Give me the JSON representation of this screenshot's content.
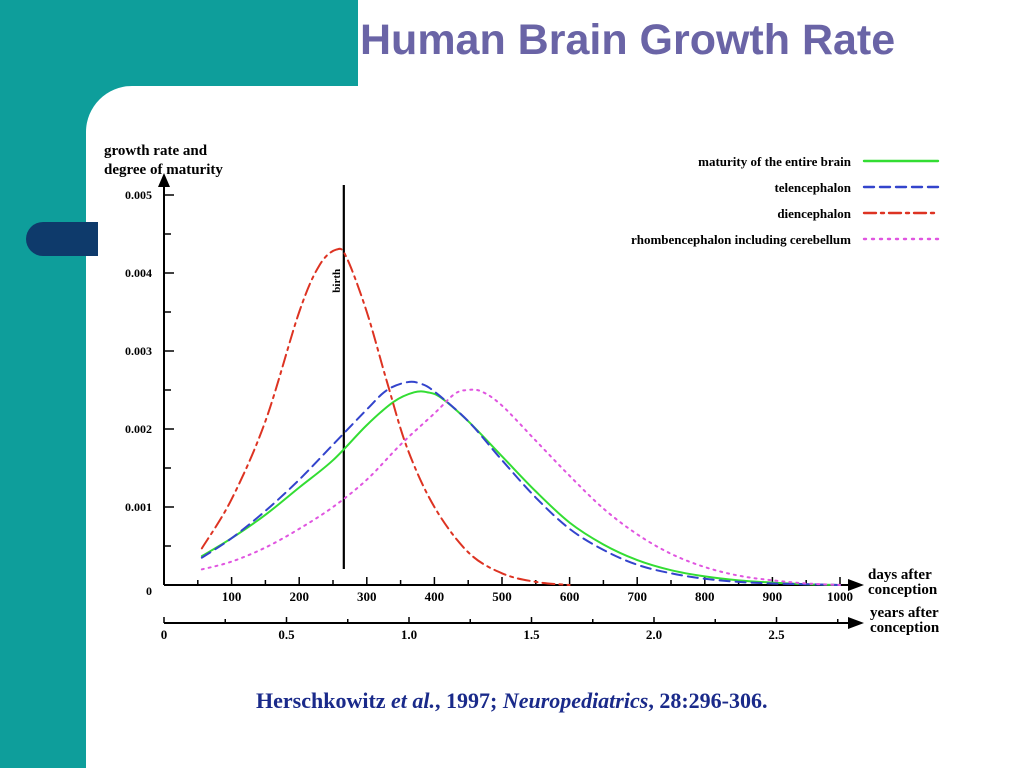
{
  "slide": {
    "title": "Human Brain Growth Rate",
    "citation": {
      "author": "Herschkowitz",
      "etal": "et al.",
      "year": ", 1997; ",
      "journal": "Neuropediatrics",
      "ref": ", 28:296-306."
    }
  },
  "colors": {
    "teal": "#0e9e9b",
    "navy": "#0e3a6b",
    "title": "#6a64a6",
    "citation": "#1a2a8a"
  },
  "chart_data": {
    "type": "line",
    "ylabel": "growth rate and degree of maturity",
    "ylabel_lines": [
      "growth rate and",
      "degree of maturity"
    ],
    "xlabel": "days after conception",
    "xlabel_lines": [
      "days after",
      "conception"
    ],
    "x2label": "years after conception",
    "x2label_lines": [
      "years after",
      "conception"
    ],
    "xlim": [
      0,
      1000
    ],
    "ylim": [
      0,
      0.005
    ],
    "x_ticks": [
      100,
      200,
      300,
      400,
      500,
      600,
      700,
      800,
      900,
      1000
    ],
    "x_tick_labels": [
      "100",
      "200",
      "300",
      "400",
      "500",
      "600",
      "700",
      "800",
      "900",
      "1000"
    ],
    "y_ticks": [
      0.001,
      0.002,
      0.003,
      0.004,
      0.005
    ],
    "y_tick_labels": [
      "0.001",
      "0.002",
      "0.003",
      "0.004",
      "0.005"
    ],
    "y_origin_label": "0",
    "x2_ticks": [
      0,
      0.5,
      1.0,
      1.5,
      2.0,
      2.5
    ],
    "x2_tick_labels": [
      "0",
      "0.5",
      "1.0",
      "1.5",
      "2.0",
      "2.5"
    ],
    "x2_max": 2.8,
    "birth": {
      "x": 266,
      "label": "birth"
    },
    "legend_position": "top-right",
    "grid": false,
    "series": [
      {
        "name": "maturity of the entire brain",
        "color": "#33dd33",
        "dash": "solid",
        "x": [
          56,
          100,
          150,
          200,
          250,
          300,
          340,
          370,
          390,
          410,
          450,
          500,
          550,
          600,
          650,
          700,
          750,
          800,
          850,
          900,
          950,
          1000
        ],
        "y": [
          0.00037,
          0.0006,
          0.0009,
          0.00125,
          0.0016,
          0.00205,
          0.00235,
          0.00247,
          0.00247,
          0.0024,
          0.0021,
          0.00165,
          0.0012,
          0.0008,
          0.00052,
          0.00032,
          0.00019,
          0.00011,
          6e-05,
          3e-05,
          1e-05,
          0.0
        ]
      },
      {
        "name": "telencephalon",
        "color": "#3344cc",
        "dash": "dashed",
        "x": [
          56,
          100,
          150,
          200,
          250,
          300,
          330,
          360,
          380,
          400,
          450,
          500,
          550,
          600,
          650,
          700,
          750,
          800,
          850,
          900,
          950,
          1000
        ],
        "y": [
          0.00035,
          0.0006,
          0.00095,
          0.00135,
          0.0018,
          0.00225,
          0.0025,
          0.0026,
          0.00258,
          0.00248,
          0.0021,
          0.0016,
          0.00112,
          0.00072,
          0.00045,
          0.00026,
          0.00015,
          8e-05,
          4e-05,
          2e-05,
          1e-05,
          0.0
        ]
      },
      {
        "name": "diencephalon",
        "color": "#dd3322",
        "dash": "dashdot",
        "x": [
          56,
          100,
          150,
          200,
          230,
          255,
          270,
          300,
          330,
          360,
          400,
          450,
          500,
          550,
          600
        ],
        "y": [
          0.00047,
          0.0011,
          0.0021,
          0.0035,
          0.0041,
          0.0043,
          0.0042,
          0.0035,
          0.0026,
          0.00175,
          0.001,
          0.00042,
          0.00015,
          4e-05,
          0.0
        ]
      },
      {
        "name": "rhombencephalon including cerebellum",
        "color": "#e055e0",
        "dash": "dotted",
        "x": [
          56,
          100,
          150,
          200,
          250,
          300,
          350,
          400,
          430,
          450,
          470,
          500,
          550,
          600,
          650,
          700,
          750,
          800,
          850,
          900,
          950,
          1000
        ],
        "y": [
          0.0002,
          0.0003,
          0.00048,
          0.00072,
          0.001,
          0.00135,
          0.0018,
          0.0022,
          0.00245,
          0.0025,
          0.00248,
          0.0023,
          0.00185,
          0.0014,
          0.00098,
          0.00065,
          0.0004,
          0.00023,
          0.00012,
          6e-05,
          2e-05,
          0.0
        ]
      }
    ]
  }
}
